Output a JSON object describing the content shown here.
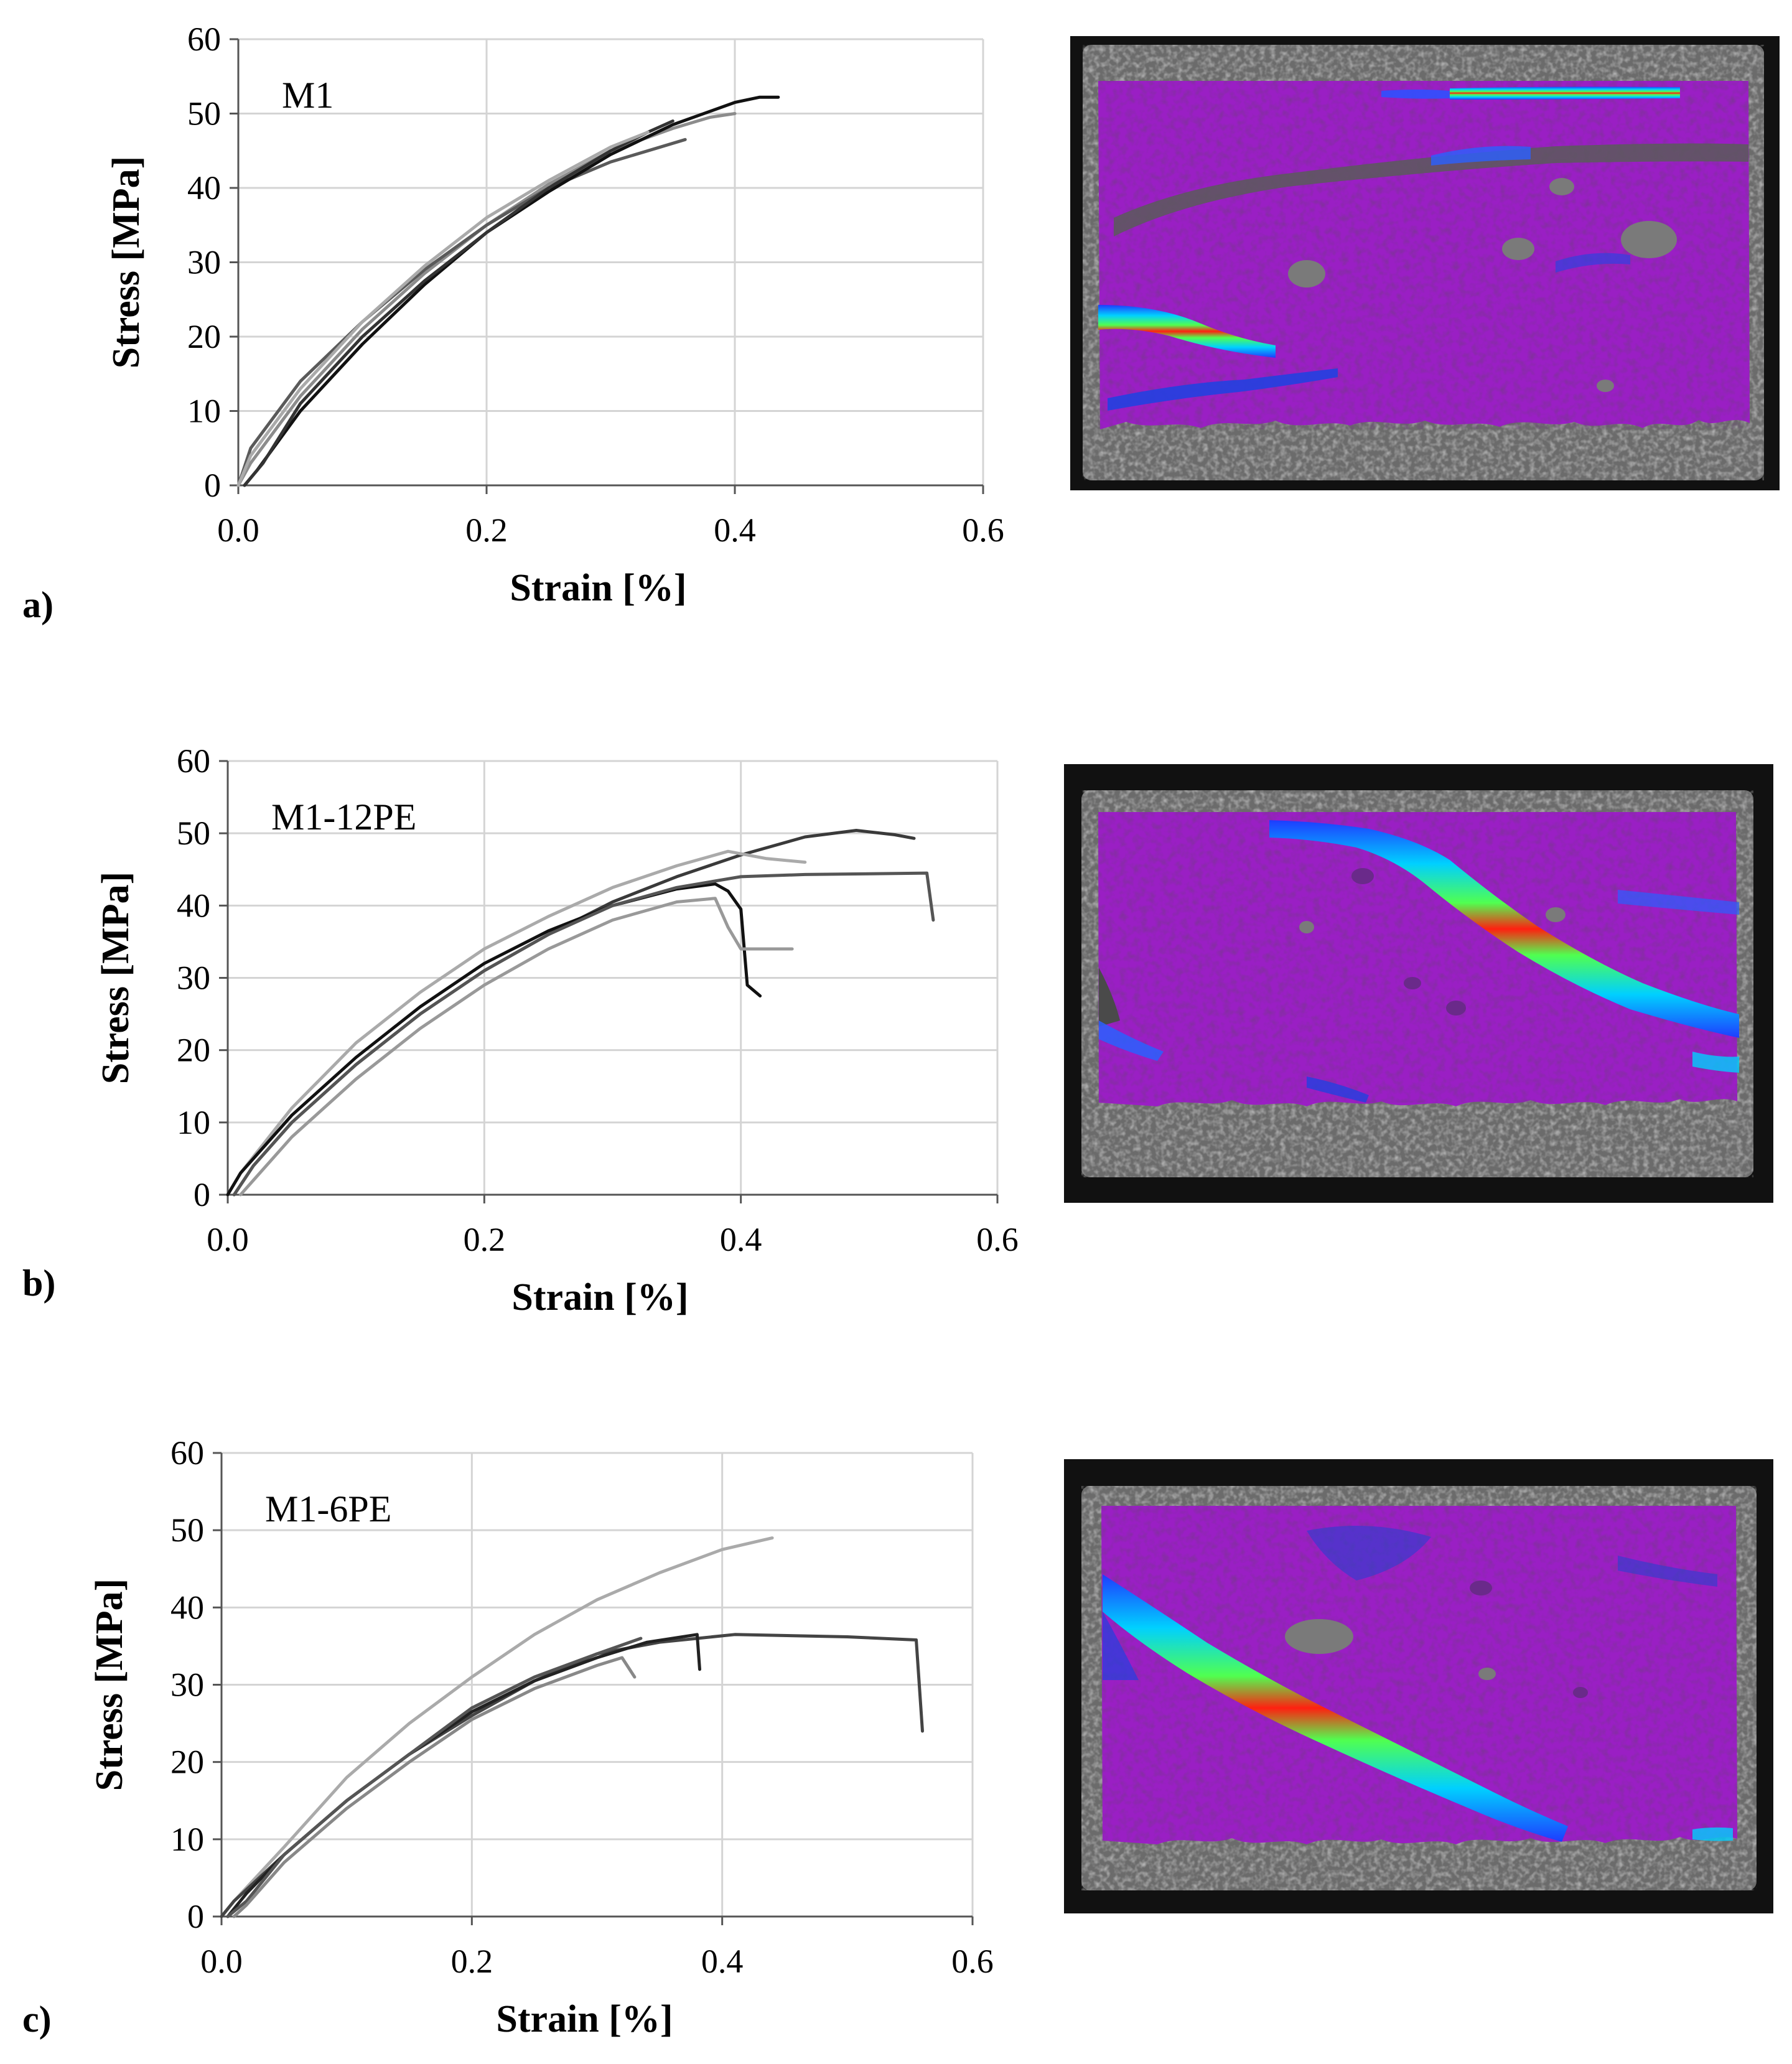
{
  "chart_data": [
    {
      "type": "line",
      "panel_label": "a)",
      "annotation": "M1",
      "xlabel": "Strain [%]",
      "ylabel": "Stress [MPa]",
      "xlim": [
        0,
        0.6
      ],
      "ylim": [
        0,
        60
      ],
      "xticks": [
        "0.0",
        "0.2",
        "0.4",
        "0.6"
      ],
      "yticks": [
        "0",
        "10",
        "20",
        "30",
        "40",
        "50",
        "60"
      ],
      "grid": true,
      "legend": "none",
      "series": [
        {
          "color": "#8c8c8c",
          "points": [
            [
              0,
              0
            ],
            [
              0.01,
              3
            ],
            [
              0.05,
              12
            ],
            [
              0.1,
              21
            ],
            [
              0.15,
              28.5
            ],
            [
              0.2,
              35
            ],
            [
              0.25,
              40.5
            ],
            [
              0.3,
              45
            ],
            [
              0.35,
              48
            ],
            [
              0.38,
              49.5
            ],
            [
              0.4,
              50
            ]
          ]
        },
        {
          "color": "#5a5a5a",
          "points": [
            [
              0,
              0
            ],
            [
              0.01,
              5
            ],
            [
              0.05,
              14
            ],
            [
              0.1,
              22
            ],
            [
              0.15,
              29
            ],
            [
              0.2,
              35
            ],
            [
              0.25,
              40
            ],
            [
              0.3,
              43.5
            ],
            [
              0.34,
              45.5
            ],
            [
              0.36,
              46.5
            ]
          ]
        },
        {
          "color": "#111111",
          "points": [
            [
              0.005,
              0
            ],
            [
              0.015,
              2
            ],
            [
              0.05,
              10
            ],
            [
              0.1,
              19
            ],
            [
              0.15,
              27
            ],
            [
              0.2,
              34
            ],
            [
              0.25,
              39.5
            ],
            [
              0.3,
              44.5
            ],
            [
              0.35,
              48.5
            ],
            [
              0.4,
              51.5
            ],
            [
              0.42,
              52.2
            ],
            [
              0.435,
              52.2
            ]
          ]
        },
        {
          "color": "#333333",
          "points": [
            [
              0.005,
              0
            ],
            [
              0.02,
              3
            ],
            [
              0.05,
              11
            ],
            [
              0.1,
              20
            ],
            [
              0.15,
              27.5
            ],
            [
              0.2,
              34
            ],
            [
              0.25,
              40
            ],
            [
              0.3,
              45
            ],
            [
              0.33,
              47.5
            ],
            [
              0.35,
              49
            ]
          ]
        },
        {
          "color": "#aaaaaa",
          "points": [
            [
              0,
              0
            ],
            [
              0.01,
              4
            ],
            [
              0.05,
              13
            ],
            [
              0.1,
              22
            ],
            [
              0.15,
              29.5
            ],
            [
              0.2,
              36
            ],
            [
              0.25,
              41
            ],
            [
              0.3,
              45.5
            ],
            [
              0.33,
              47.5
            ]
          ]
        }
      ]
    },
    {
      "type": "line",
      "panel_label": "b)",
      "annotation": "M1-12PE",
      "xlabel": "Strain [%]",
      "ylabel": "Stress [MPa]",
      "xlim": [
        0,
        0.6
      ],
      "ylim": [
        0,
        60
      ],
      "xticks": [
        "0.0",
        "0.2",
        "0.4",
        "0.6"
      ],
      "yticks": [
        "0",
        "10",
        "20",
        "30",
        "40",
        "50",
        "60"
      ],
      "grid": true,
      "legend": "none",
      "series": [
        {
          "color": "#3a3a3a",
          "points": [
            [
              0.005,
              0
            ],
            [
              0.02,
              4
            ],
            [
              0.05,
              10
            ],
            [
              0.1,
              18
            ],
            [
              0.15,
              25
            ],
            [
              0.2,
              31
            ],
            [
              0.25,
              36
            ],
            [
              0.3,
              40.5
            ],
            [
              0.35,
              44
            ],
            [
              0.4,
              47
            ],
            [
              0.45,
              49.5
            ],
            [
              0.49,
              50.4
            ],
            [
              0.52,
              49.8
            ],
            [
              0.535,
              49.3
            ]
          ]
        },
        {
          "color": "#aaaaaa",
          "points": [
            [
              0,
              0
            ],
            [
              0.01,
              3
            ],
            [
              0.05,
              12
            ],
            [
              0.1,
              21
            ],
            [
              0.15,
              28
            ],
            [
              0.2,
              34
            ],
            [
              0.25,
              38.5
            ],
            [
              0.3,
              42.5
            ],
            [
              0.35,
              45.5
            ],
            [
              0.39,
              47.5
            ],
            [
              0.42,
              46.5
            ],
            [
              0.45,
              46
            ]
          ]
        },
        {
          "color": "#111111",
          "points": [
            [
              0,
              0
            ],
            [
              0.01,
              3
            ],
            [
              0.05,
              11
            ],
            [
              0.1,
              19
            ],
            [
              0.15,
              26
            ],
            [
              0.2,
              32
            ],
            [
              0.25,
              36.5
            ],
            [
              0.3,
              40
            ],
            [
              0.35,
              42.3
            ],
            [
              0.38,
              43
            ],
            [
              0.39,
              42
            ],
            [
              0.4,
              39.5
            ],
            [
              0.405,
              29
            ],
            [
              0.415,
              27.5
            ]
          ]
        },
        {
          "color": "#555555",
          "points": [
            [
              0.005,
              0
            ],
            [
              0.02,
              4
            ],
            [
              0.05,
              10
            ],
            [
              0.1,
              18
            ],
            [
              0.15,
              25
            ],
            [
              0.2,
              31
            ],
            [
              0.25,
              36
            ],
            [
              0.3,
              40
            ],
            [
              0.35,
              42.5
            ],
            [
              0.4,
              44
            ],
            [
              0.45,
              44.3
            ],
            [
              0.5,
              44.4
            ],
            [
              0.545,
              44.5
            ],
            [
              0.55,
              38
            ]
          ]
        },
        {
          "color": "#999999",
          "points": [
            [
              0.01,
              0
            ],
            [
              0.02,
              2
            ],
            [
              0.05,
              8
            ],
            [
              0.1,
              16
            ],
            [
              0.15,
              23
            ],
            [
              0.2,
              29
            ],
            [
              0.25,
              34
            ],
            [
              0.3,
              38
            ],
            [
              0.35,
              40.5
            ],
            [
              0.38,
              41
            ],
            [
              0.39,
              37
            ],
            [
              0.4,
              34
            ],
            [
              0.44,
              34
            ]
          ]
        }
      ]
    },
    {
      "type": "line",
      "panel_label": "c)",
      "annotation": "M1-6PE",
      "xlabel": "Strain [%]",
      "ylabel": "Stress [MPa]",
      "xlim": [
        0,
        0.6
      ],
      "ylim": [
        0,
        60
      ],
      "xticks": [
        "0.0",
        "0.2",
        "0.4",
        "0.6"
      ],
      "yticks": [
        "0",
        "10",
        "20",
        "30",
        "40",
        "50",
        "60"
      ],
      "grid": true,
      "legend": "none",
      "series": [
        {
          "color": "#aaaaaa",
          "points": [
            [
              0,
              0
            ],
            [
              0.01,
              2
            ],
            [
              0.05,
              9
            ],
            [
              0.1,
              18
            ],
            [
              0.15,
              25
            ],
            [
              0.2,
              31
            ],
            [
              0.25,
              36.5
            ],
            [
              0.3,
              41
            ],
            [
              0.35,
              44.5
            ],
            [
              0.4,
              47.5
            ],
            [
              0.44,
              49
            ]
          ]
        },
        {
          "color": "#444444",
          "points": [
            [
              0,
              0
            ],
            [
              0.01,
              2
            ],
            [
              0.05,
              8
            ],
            [
              0.1,
              15
            ],
            [
              0.15,
              21
            ],
            [
              0.2,
              26
            ],
            [
              0.25,
              30.5
            ],
            [
              0.3,
              34
            ],
            [
              0.35,
              35.5
            ],
            [
              0.41,
              36.5
            ],
            [
              0.5,
              36.2
            ],
            [
              0.555,
              35.8
            ],
            [
              0.56,
              24
            ]
          ]
        },
        {
          "color": "#222222",
          "points": [
            [
              0.005,
              0
            ],
            [
              0.02,
              3
            ],
            [
              0.05,
              8
            ],
            [
              0.1,
              15
            ],
            [
              0.15,
              21
            ],
            [
              0.2,
              26.5
            ],
            [
              0.25,
              30.5
            ],
            [
              0.3,
              33.5
            ],
            [
              0.34,
              35.5
            ],
            [
              0.38,
              36.5
            ],
            [
              0.382,
              32
            ]
          ]
        },
        {
          "color": "#555555",
          "points": [
            [
              0.005,
              0
            ],
            [
              0.02,
              2
            ],
            [
              0.05,
              8
            ],
            [
              0.1,
              15
            ],
            [
              0.15,
              21
            ],
            [
              0.2,
              27
            ],
            [
              0.25,
              31
            ],
            [
              0.3,
              34
            ],
            [
              0.335,
              36
            ]
          ]
        },
        {
          "color": "#888888",
          "points": [
            [
              0.01,
              0
            ],
            [
              0.02,
              1.5
            ],
            [
              0.05,
              7
            ],
            [
              0.1,
              14
            ],
            [
              0.15,
              20
            ],
            [
              0.2,
              25.5
            ],
            [
              0.25,
              29.5
            ],
            [
              0.3,
              32.5
            ],
            [
              0.32,
              33.5
            ],
            [
              0.33,
              31
            ]
          ]
        }
      ]
    }
  ]
}
